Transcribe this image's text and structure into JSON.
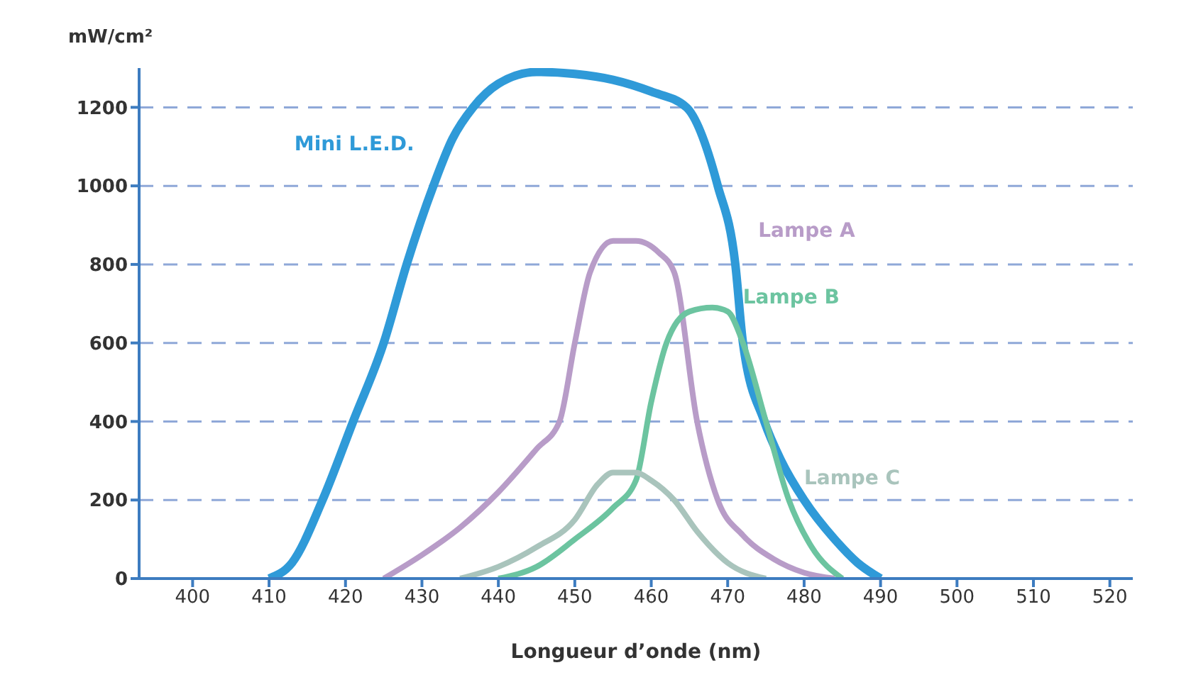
{
  "chart_data": {
    "type": "line",
    "xlabel": "Longueur d’onde (nm)",
    "ylabel": "mW/cm²",
    "xlim": [
      393,
      523
    ],
    "ylim": [
      0,
      1300
    ],
    "xticks": [
      400,
      410,
      420,
      430,
      440,
      450,
      460,
      470,
      480,
      490,
      500,
      510,
      520
    ],
    "yticks": [
      0,
      200,
      400,
      600,
      800,
      1000,
      1200
    ],
    "grid": "y",
    "marker": "none",
    "line_style": "solid",
    "series": [
      {
        "name": "Mini L.E.D.",
        "color": "#2f9ad8",
        "x": [
          410,
          413,
          417,
          421,
          425,
          428,
          431.5,
          434,
          436.7,
          440,
          445,
          450,
          455,
          460,
          464.6,
          468.7,
          471,
          472,
          474.8,
          477,
          480,
          484,
          487,
          490
        ],
        "values": [
          0,
          40,
          200,
          400,
          600,
          800,
          1000,
          1120,
          1200,
          1260,
          1290,
          1285,
          1270,
          1240,
          1200,
          1000,
          800,
          600,
          400,
          300,
          200,
          100,
          40,
          0
        ]
      },
      {
        "name": "Lampe A",
        "color": "#b89cc8",
        "x": [
          425,
          430,
          435,
          440,
          445,
          448,
          450,
          452,
          455,
          458,
          461,
          463,
          466,
          468.7,
          472,
          476,
          480,
          484
        ],
        "values": [
          0,
          60,
          130,
          220,
          330,
          400,
          600,
          780,
          860,
          860,
          830,
          780,
          400,
          200,
          110,
          50,
          15,
          0
        ]
      },
      {
        "name": "Lampe B",
        "color": "#6cc4a0",
        "x": [
          440,
          445,
          450,
          455,
          458,
          460,
          462,
          465,
          468,
          470,
          472,
          475,
          478,
          481,
          485
        ],
        "values": [
          0,
          30,
          100,
          180,
          250,
          450,
          600,
          680,
          690,
          680,
          600,
          400,
          200,
          80,
          0
        ]
      },
      {
        "name": "Lampe C",
        "color": "#a9c4bc",
        "x": [
          435,
          440,
          445,
          450,
          453,
          455,
          458,
          460,
          463,
          466,
          470,
          475
        ],
        "values": [
          0,
          30,
          80,
          150,
          240,
          270,
          270,
          250,
          200,
          120,
          40,
          0
        ]
      }
    ]
  }
}
